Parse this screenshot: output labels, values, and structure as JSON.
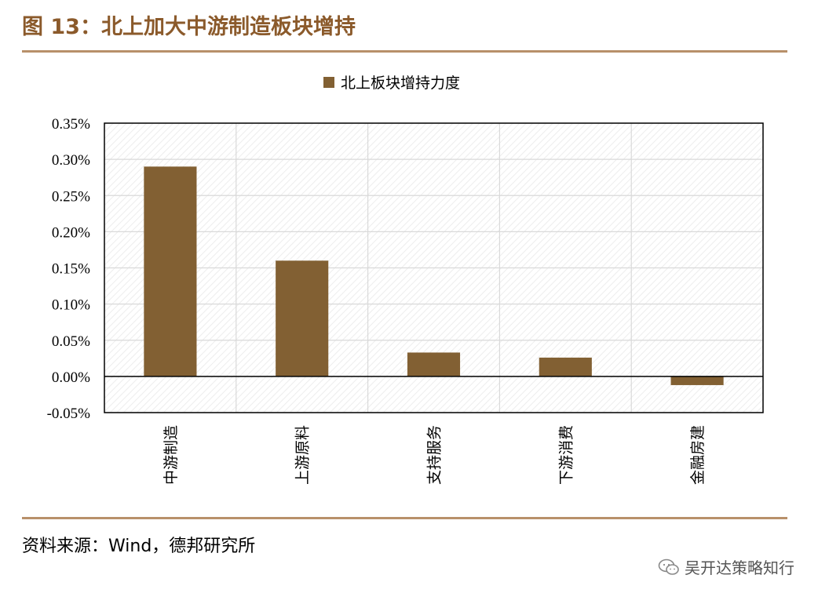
{
  "figure": {
    "title": "图 13：北上加大中游制造板块增持",
    "source": "资料来源：Wind，德邦研究所",
    "watermark": "吴开达策略知行"
  },
  "colors": {
    "bar": "#826033",
    "rule": "#B8906A",
    "title": "#8B5A2B",
    "grid": "#D9D9D9"
  },
  "icons": {
    "watermark_icon": "wechat-icon"
  },
  "chart_data": {
    "type": "bar",
    "categories": [
      "中游制造",
      "上游原料",
      "支持服务",
      "下游消费",
      "金融房建"
    ],
    "series": [
      {
        "name": "北上板块增持力度",
        "values": [
          0.0029,
          0.0016,
          0.00033,
          0.00026,
          -0.00012
        ]
      }
    ],
    "ylim": [
      -0.0005,
      0.0035
    ],
    "yticks": [
      -0.0005,
      0,
      0.0005,
      0.001,
      0.0015,
      0.002,
      0.0025,
      0.003,
      0.0035
    ],
    "ytick_labels": [
      "-0.05%",
      "0.00%",
      "0.05%",
      "0.10%",
      "0.15%",
      "0.20%",
      "0.25%",
      "0.30%",
      "0.35%"
    ],
    "grid": true,
    "legend_position": "top-center",
    "xlabel": "",
    "ylabel": ""
  }
}
